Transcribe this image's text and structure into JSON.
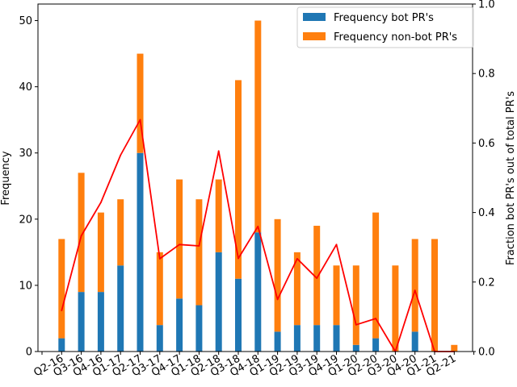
{
  "chart_data": {
    "type": "bar",
    "stacked": true,
    "categories": [
      "Q2-16",
      "Q3-16",
      "Q4-16",
      "Q1-17",
      "Q2-17",
      "Q3-17",
      "Q4-17",
      "Q1-18",
      "Q2-18",
      "Q3-18",
      "Q4-18",
      "Q1-19",
      "Q2-19",
      "Q3-19",
      "Q4-19",
      "Q1-20",
      "Q2-20",
      "Q3-20",
      "Q4-20",
      "Q1-21",
      "Q2-21"
    ],
    "series": [
      {
        "name": "Frequency bot PR's",
        "color": "#1f77b4",
        "axis": "left",
        "values": [
          2,
          9,
          9,
          13,
          30,
          4,
          8,
          7,
          15,
          11,
          18,
          3,
          4,
          4,
          4,
          1,
          2,
          0,
          3,
          0,
          0
        ]
      },
      {
        "name": "Frequency non-bot PR's",
        "color": "#ff7f0e",
        "axis": "left",
        "values": [
          15,
          18,
          12,
          10,
          15,
          11,
          18,
          16,
          11,
          30,
          32,
          17,
          11,
          15,
          9,
          12,
          19,
          13,
          14,
          17,
          1
        ]
      },
      {
        "name": "",
        "type": "line",
        "color": "#ff0000",
        "axis": "right",
        "values": [
          0.118,
          0.333,
          0.429,
          0.565,
          0.667,
          0.267,
          0.308,
          0.304,
          0.577,
          0.268,
          0.36,
          0.15,
          0.267,
          0.211,
          0.308,
          0.077,
          0.095,
          0.0,
          0.176,
          0.0,
          0.0
        ]
      }
    ],
    "ylabel": "Frequency",
    "y2label": "Fraction bot PR's out of total PR's",
    "xlabel": "",
    "title": "",
    "ylim": [
      0,
      52.5
    ],
    "y2lim": [
      0,
      1.0
    ],
    "yticks": [
      0,
      10,
      20,
      30,
      40,
      50
    ],
    "y2ticks": [
      "0.0",
      "0.2",
      "0.4",
      "0.6",
      "0.8",
      "1.0"
    ],
    "legend_position": "top-right",
    "grid": false
  }
}
